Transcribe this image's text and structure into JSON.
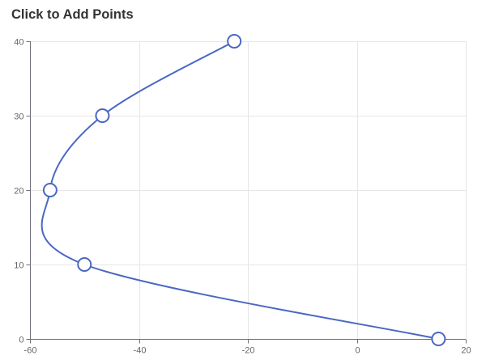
{
  "title": "Click to Add Points",
  "chart_data": {
    "type": "line",
    "title": "Click to Add Points",
    "xlabel": "",
    "ylabel": "",
    "xlim": [
      -60,
      20
    ],
    "ylim": [
      0,
      40
    ],
    "x_ticks": [
      -60,
      -40,
      -20,
      0,
      20
    ],
    "y_ticks": [
      0,
      10,
      20,
      30,
      40
    ],
    "grid": true,
    "smooth": true,
    "series": [
      {
        "points": [
          {
            "x": -22.5,
            "y": 40
          },
          {
            "x": -46.7,
            "y": 30
          },
          {
            "x": -56.3,
            "y": 20
          },
          {
            "x": -50.0,
            "y": 10
          },
          {
            "x": 15.0,
            "y": 0
          }
        ]
      }
    ],
    "colors": {
      "line": "#4a67c4",
      "marker_fill": "#ffffff",
      "marker_stroke": "#4a67c4",
      "grid": "#e6e6e6",
      "axis": "#6e7079",
      "tick_text": "#666666"
    }
  }
}
